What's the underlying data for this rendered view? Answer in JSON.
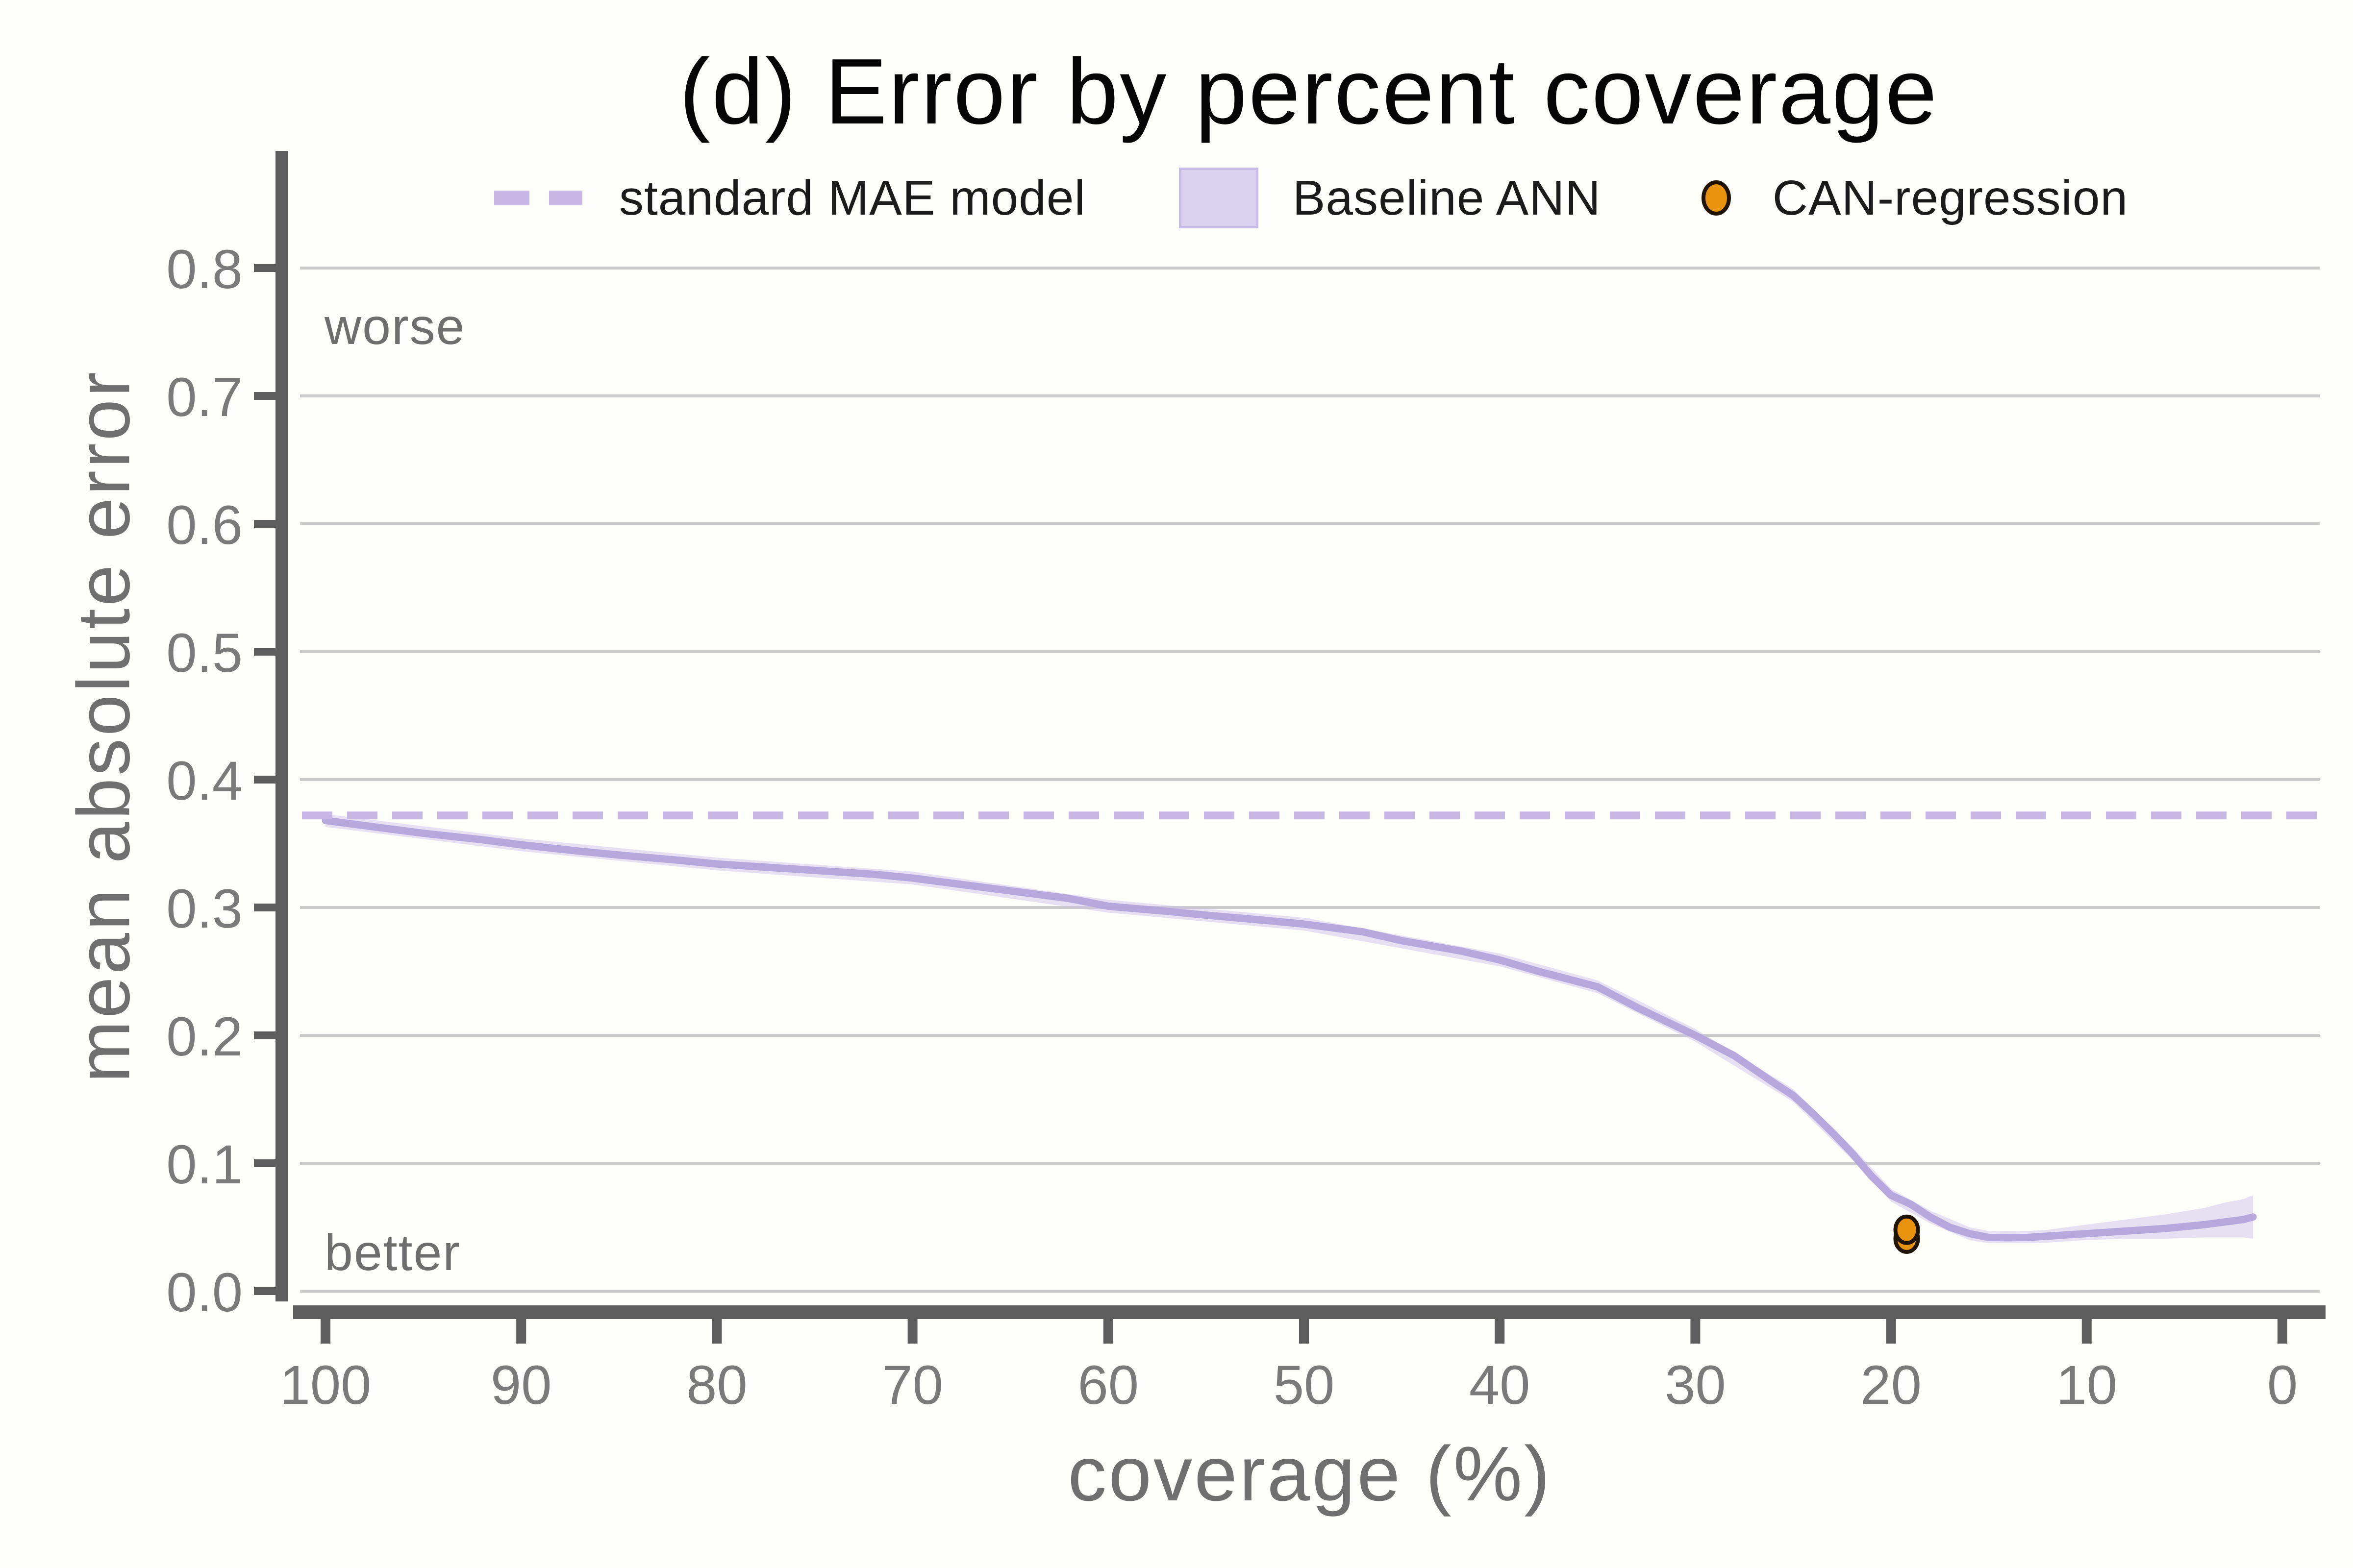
{
  "chart_data": {
    "type": "line",
    "title": "(d) Error by percent coverage",
    "xlabel": "coverage (%)",
    "ylabel": "mean absolute error",
    "annotations": {
      "worse": "worse",
      "better": "better"
    },
    "x_ticks": [
      100,
      90,
      80,
      70,
      60,
      50,
      40,
      30,
      20,
      10,
      0
    ],
    "y_ticks": [
      0.0,
      0.1,
      0.2,
      0.3,
      0.4,
      0.5,
      0.6,
      0.7,
      0.8
    ],
    "xlim": [
      100,
      0
    ],
    "ylim": [
      0.0,
      0.8
    ],
    "x_axis_reversed": true,
    "grid": true,
    "legend_position": "top-center",
    "colors": {
      "dashed_line": "#c7b7e5",
      "ann_line": "#b2a3da",
      "ann_band": "#cfc3ea",
      "scatter_fill": "#e8920e",
      "scatter_edge": "#201505",
      "gridline": "#cbcbcb",
      "spine": "#5d5d5d",
      "tick_text": "#7a7a7a"
    },
    "series": [
      {
        "name": "standard MAE model",
        "type": "hline-dashed",
        "value": 0.372
      },
      {
        "name": "Baseline ANN",
        "type": "line-with-band",
        "points": [
          [
            100,
            0.368
          ],
          [
            97,
            0.362
          ],
          [
            95,
            0.358
          ],
          [
            92,
            0.353
          ],
          [
            90,
            0.349
          ],
          [
            87,
            0.344
          ],
          [
            85,
            0.341
          ],
          [
            82,
            0.337
          ],
          [
            80,
            0.334
          ],
          [
            77,
            0.331
          ],
          [
            75,
            0.329
          ],
          [
            72,
            0.326
          ],
          [
            70,
            0.323
          ],
          [
            67,
            0.317
          ],
          [
            65,
            0.313
          ],
          [
            62,
            0.307
          ],
          [
            60,
            0.301
          ],
          [
            57,
            0.297
          ],
          [
            55,
            0.294
          ],
          [
            52,
            0.29
          ],
          [
            50,
            0.287
          ],
          [
            47,
            0.281
          ],
          [
            45,
            0.274
          ],
          [
            42,
            0.266
          ],
          [
            40,
            0.259
          ],
          [
            38,
            0.25
          ],
          [
            35,
            0.238
          ],
          [
            33,
            0.222
          ],
          [
            30,
            0.2
          ],
          [
            28,
            0.184
          ],
          [
            26,
            0.163
          ],
          [
            25,
            0.153
          ],
          [
            24,
            0.139
          ],
          [
            23,
            0.124
          ],
          [
            22,
            0.108
          ],
          [
            21,
            0.09
          ],
          [
            20,
            0.075
          ],
          [
            19,
            0.068
          ],
          [
            18,
            0.058
          ],
          [
            17,
            0.05
          ],
          [
            16,
            0.045
          ],
          [
            15,
            0.042
          ],
          [
            14,
            0.0418
          ],
          [
            13,
            0.042
          ],
          [
            12,
            0.043
          ],
          [
            10,
            0.045
          ],
          [
            8,
            0.047
          ],
          [
            6,
            0.049
          ],
          [
            4,
            0.052
          ],
          [
            3,
            0.054
          ],
          [
            2,
            0.056
          ],
          [
            1.5,
            0.058
          ]
        ],
        "band": [
          [
            100,
            0.363,
            0.373
          ],
          [
            90,
            0.344,
            0.354
          ],
          [
            80,
            0.329,
            0.339
          ],
          [
            70,
            0.318,
            0.328
          ],
          [
            60,
            0.296,
            0.306
          ],
          [
            50,
            0.282,
            0.292
          ],
          [
            40,
            0.254,
            0.264
          ],
          [
            35,
            0.233,
            0.243
          ],
          [
            30,
            0.195,
            0.205
          ],
          [
            25,
            0.148,
            0.158
          ],
          [
            22,
            0.103,
            0.113
          ],
          [
            20,
            0.07,
            0.08
          ],
          [
            18,
            0.053,
            0.063
          ],
          [
            16,
            0.04,
            0.05
          ],
          [
            15,
            0.0375,
            0.047
          ],
          [
            13,
            0.0375,
            0.047
          ],
          [
            12,
            0.038,
            0.048
          ],
          [
            10,
            0.04,
            0.052
          ],
          [
            8,
            0.041,
            0.056
          ],
          [
            6,
            0.041,
            0.06
          ],
          [
            4,
            0.042,
            0.065
          ],
          [
            3,
            0.042,
            0.069
          ],
          [
            2,
            0.042,
            0.072
          ],
          [
            1.5,
            0.041,
            0.075
          ]
        ]
      },
      {
        "name": "CAN-regression",
        "type": "scatter",
        "points": [
          [
            19.2,
            0.041
          ],
          [
            19.2,
            0.048
          ]
        ]
      }
    ]
  },
  "legend": {
    "items": [
      {
        "label": "standard MAE model",
        "marker": "dashed-line"
      },
      {
        "label": "Baseline ANN",
        "marker": "band-swatch"
      },
      {
        "label": "CAN-regression",
        "marker": "orange-dot"
      }
    ]
  }
}
